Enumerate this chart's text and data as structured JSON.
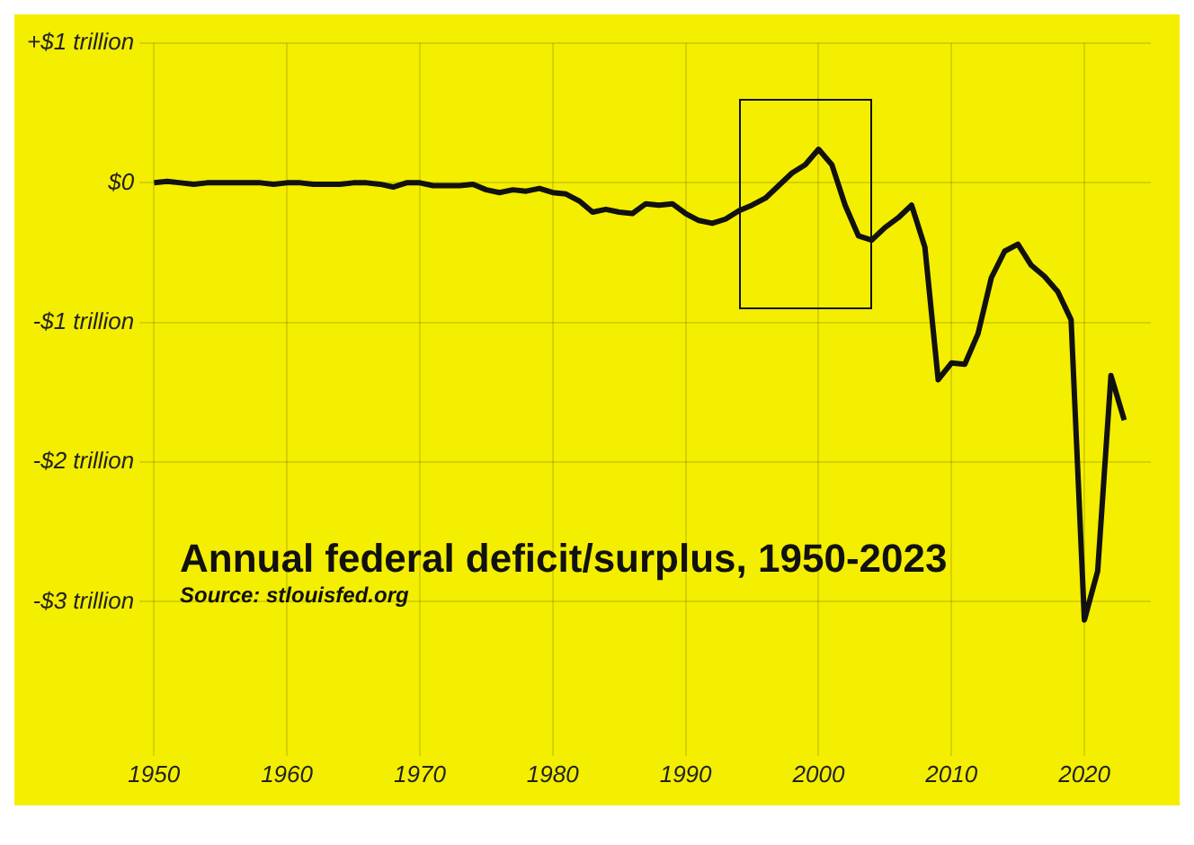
{
  "chart_data": {
    "type": "line",
    "title": "Annual federal deficit/surplus, 1950-2023",
    "subtitle": "Source: stlouisfed.org",
    "x": [
      1950,
      1951,
      1952,
      1953,
      1954,
      1955,
      1956,
      1957,
      1958,
      1959,
      1960,
      1961,
      1962,
      1963,
      1964,
      1965,
      1966,
      1967,
      1968,
      1969,
      1970,
      1971,
      1972,
      1973,
      1974,
      1975,
      1976,
      1977,
      1978,
      1979,
      1980,
      1981,
      1982,
      1983,
      1984,
      1985,
      1986,
      1987,
      1988,
      1989,
      1990,
      1991,
      1992,
      1993,
      1994,
      1995,
      1996,
      1997,
      1998,
      1999,
      2000,
      2001,
      2002,
      2003,
      2004,
      2005,
      2006,
      2007,
      2008,
      2009,
      2010,
      2011,
      2012,
      2013,
      2014,
      2015,
      2016,
      2017,
      2018,
      2019,
      2020,
      2021,
      2022,
      2023
    ],
    "series": [
      {
        "color": "#111111",
        "values": [
          0,
          0.01,
          0,
          -0.01,
          0,
          0,
          0,
          0,
          0,
          -0.01,
          0,
          0,
          -0.01,
          -0.01,
          -0.01,
          0,
          0,
          -0.01,
          -0.03,
          0,
          0,
          -0.02,
          -0.02,
          -0.02,
          -0.01,
          -0.05,
          -0.07,
          -0.05,
          -0.06,
          -0.04,
          -0.07,
          -0.08,
          -0.13,
          -0.21,
          -0.19,
          -0.21,
          -0.22,
          -0.15,
          -0.16,
          -0.15,
          -0.22,
          -0.27,
          -0.29,
          -0.26,
          -0.2,
          -0.16,
          -0.11,
          -0.02,
          0.07,
          0.13,
          0.24,
          0.13,
          -0.16,
          -0.38,
          -0.41,
          -0.32,
          -0.25,
          -0.16,
          -0.46,
          -1.41,
          -1.29,
          -1.3,
          -1.08,
          -0.68,
          -0.49,
          -0.44,
          -0.59,
          -0.67,
          -0.78,
          -0.98,
          -3.13,
          -2.78,
          -1.38,
          -1.7
        ]
      }
    ],
    "xlim": [
      1950,
      2025
    ],
    "xticks": [
      1950,
      1960,
      1970,
      1980,
      1990,
      2000,
      2010,
      2020
    ],
    "ylim": [
      -4,
      1
    ],
    "yticks": [
      {
        "value": 1,
        "label": "+$1 trillion"
      },
      {
        "value": 0,
        "label": "$0"
      },
      {
        "value": -1,
        "label": "-$1 trillion"
      },
      {
        "value": -2,
        "label": "-$2 trillion"
      },
      {
        "value": -3,
        "label": "-$3 trillion"
      }
    ],
    "grid": true,
    "legend": false,
    "marker": "none",
    "line_style": "solid"
  }
}
